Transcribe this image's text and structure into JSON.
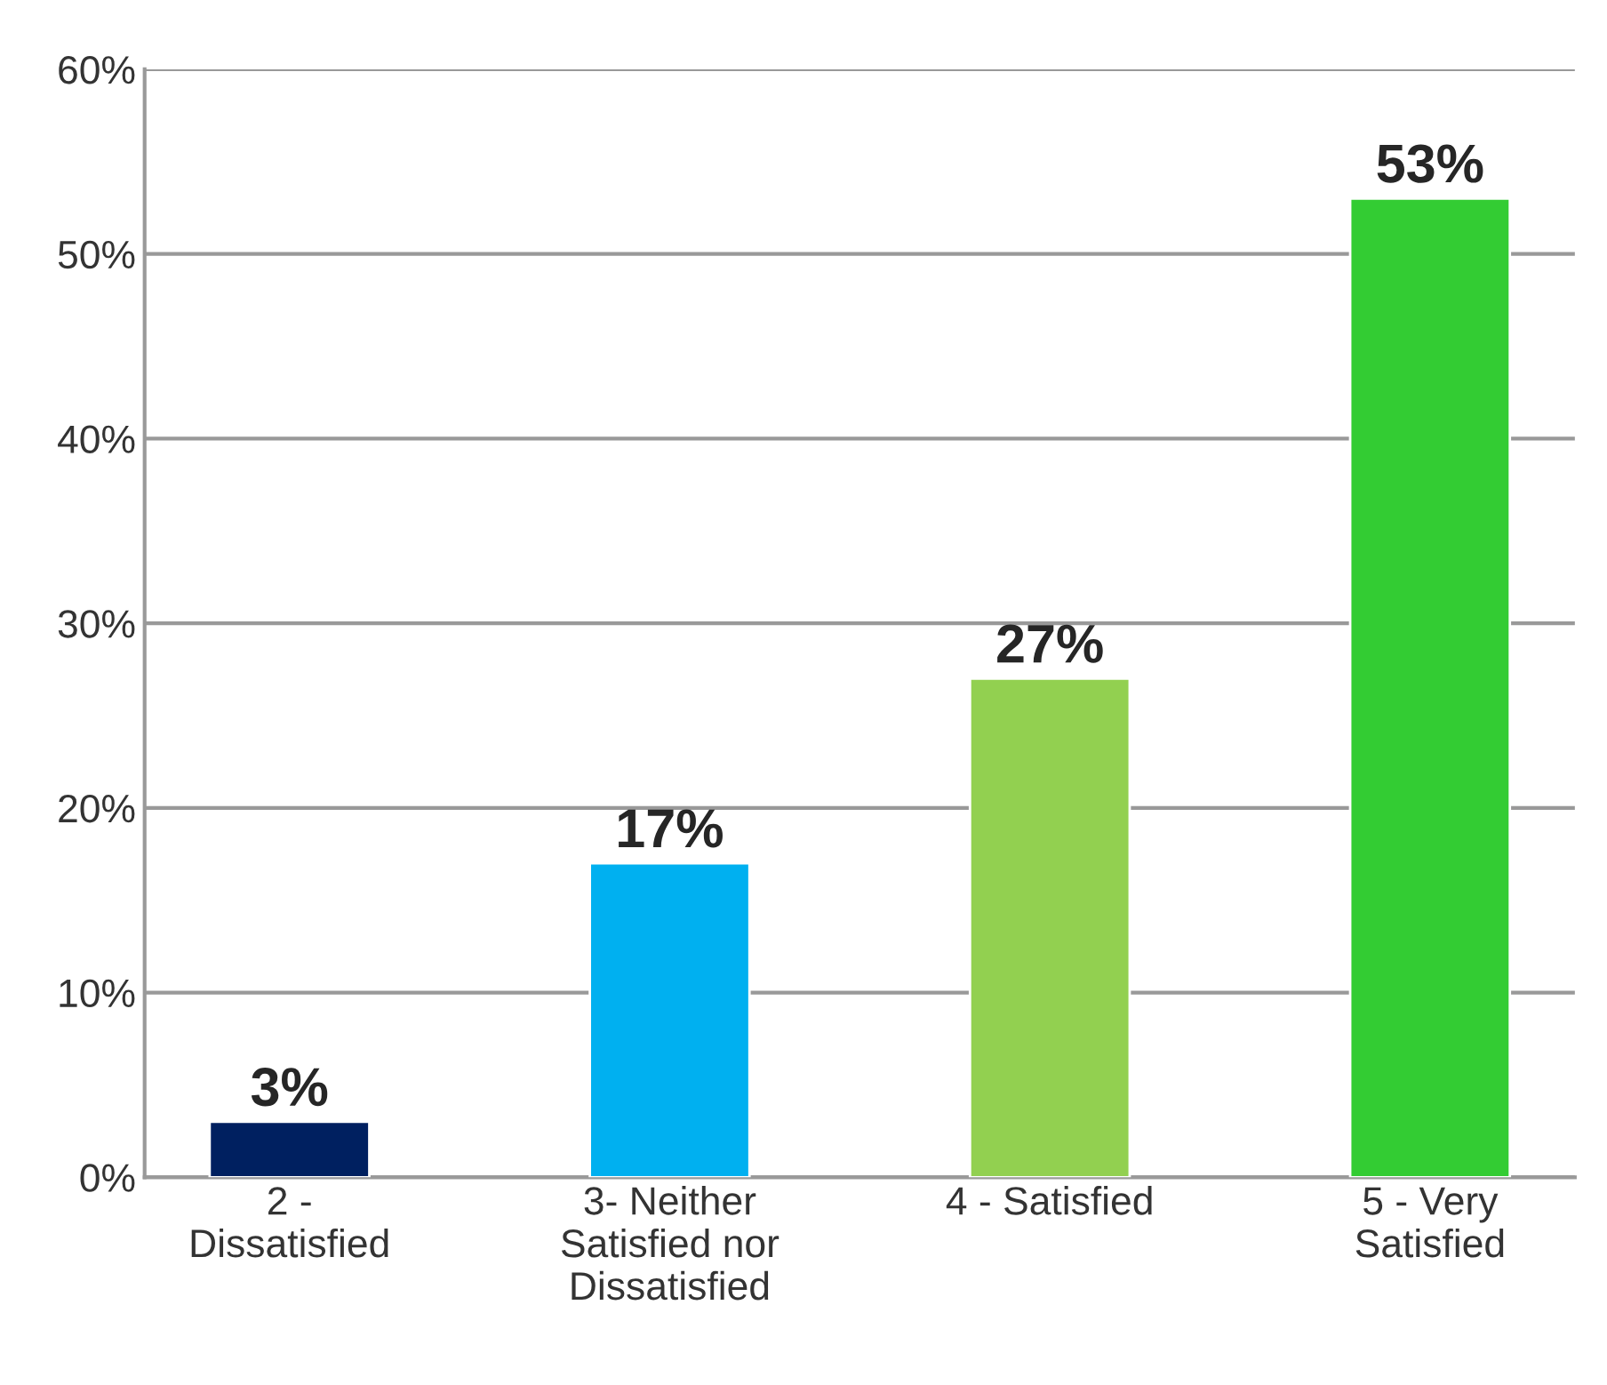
{
  "chart_data": {
    "type": "bar",
    "categories": [
      "2 -\nDissatisfied",
      "3- Neither\nSatisfied nor\nDissatisfied",
      "4 - Satisfied",
      "5 - Very\nSatisfied"
    ],
    "values": [
      3,
      17,
      27,
      53
    ],
    "colors": [
      "#002060",
      "#00b0f0",
      "#92d050",
      "#33cc33"
    ],
    "value_labels": [
      "3%",
      "17%",
      "27%",
      "53%"
    ],
    "ylim": [
      0,
      60
    ],
    "yticks": [
      {
        "value": 0,
        "label": "0%"
      },
      {
        "value": 10,
        "label": "10%"
      },
      {
        "value": 20,
        "label": "20%"
      },
      {
        "value": 30,
        "label": "30%"
      },
      {
        "value": 40,
        "label": "40%"
      },
      {
        "value": 50,
        "label": "50%"
      },
      {
        "value": 60,
        "label": "60%"
      }
    ],
    "grid": "y"
  }
}
